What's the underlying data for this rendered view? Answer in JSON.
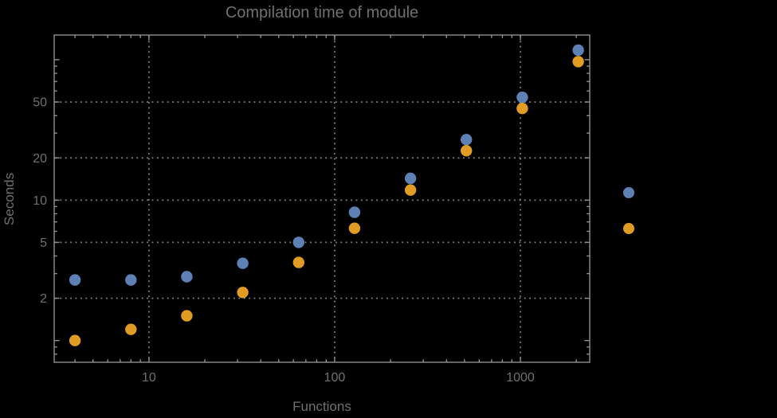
{
  "colors": {
    "background": "#000000",
    "text": "#707070",
    "frame": "#8f8f8f",
    "grid": "#828282",
    "series_blue": "#5e81b5",
    "series_orange": "#e19c24"
  },
  "legend": {
    "markers": [
      {
        "name": "blue",
        "color": "#5e81b5"
      },
      {
        "name": "orange",
        "color": "#e19c24"
      }
    ],
    "labels_visible": false
  },
  "chart_data": {
    "type": "scatter",
    "title": "Compilation time of module",
    "xlabel": "Functions",
    "ylabel": "Seconds",
    "xscale": "log",
    "yscale": "log",
    "xlim": [
      3.09,
      2362
    ],
    "ylim": [
      0.7,
      150
    ],
    "grid": "dotted",
    "legend_position": "right-outside",
    "x": [
      4,
      8,
      16,
      32,
      64,
      128,
      256,
      512,
      1024,
      2048
    ],
    "series": [
      {
        "name": "blue",
        "color": "#5e81b5",
        "values": [
          2.7,
          2.7,
          2.85,
          3.55,
          5.0,
          8.2,
          14.3,
          27,
          54,
          117
        ]
      },
      {
        "name": "orange",
        "color": "#e19c24",
        "values": [
          1.0,
          1.2,
          1.5,
          2.2,
          3.6,
          6.3,
          11.8,
          22.5,
          45,
          97
        ]
      }
    ],
    "x_ticks_labeled": [
      10,
      100,
      1000
    ],
    "y_ticks_labeled": [
      2,
      5,
      10,
      20,
      50
    ],
    "y_ticks_unlabeled": [
      1,
      100
    ],
    "grid_x": [
      10,
      100,
      1000
    ],
    "grid_y": [
      2,
      5,
      10,
      20,
      50
    ]
  }
}
